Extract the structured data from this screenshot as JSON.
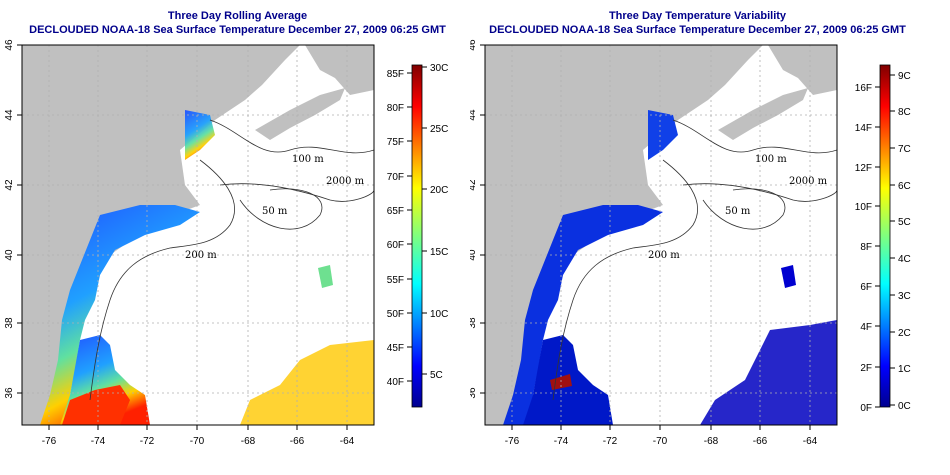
{
  "left_panel": {
    "title_line1": "Three Day Rolling Average",
    "title_line2": "DECLOUDED NOAA-18 Sea Surface Temperature December 27, 2009 06:25 GMT",
    "colorbar_f": [
      "85F",
      "80F",
      "75F",
      "70F",
      "65F",
      "60F",
      "55F",
      "50F",
      "45F",
      "40F"
    ],
    "colorbar_c": [
      "30C",
      "25C",
      "20C",
      "15C",
      "10C",
      "5C"
    ]
  },
  "right_panel": {
    "title_line1": "Three Day Temperature Variability",
    "title_line2": "DECLOUDED NOAA-18 Sea Surface Temperature December 27, 2009 06:25 GMT",
    "colorbar_f": [
      "16F",
      "14F",
      "12F",
      "10F",
      "8F",
      "6F",
      "4F",
      "2F",
      "0F"
    ],
    "colorbar_c": [
      "9C",
      "8C",
      "7C",
      "6C",
      "5C",
      "4C",
      "3C",
      "2C",
      "1C",
      "0C"
    ]
  },
  "axes": {
    "x_ticks": [
      "-76",
      "-74",
      "-72",
      "-70",
      "-68",
      "-66",
      "-64"
    ],
    "y_ticks": [
      "46",
      "44",
      "42",
      "40",
      "38",
      "36"
    ]
  },
  "depth_labels": {
    "d100": "100 m",
    "d2000": "2000 m",
    "d200": "200 m",
    "d50": "50 m"
  },
  "colors": {
    "title": "#00008b",
    "land": "#c0c0c0",
    "ocean": "#ffffff",
    "grid": "#b0b0b0"
  }
}
